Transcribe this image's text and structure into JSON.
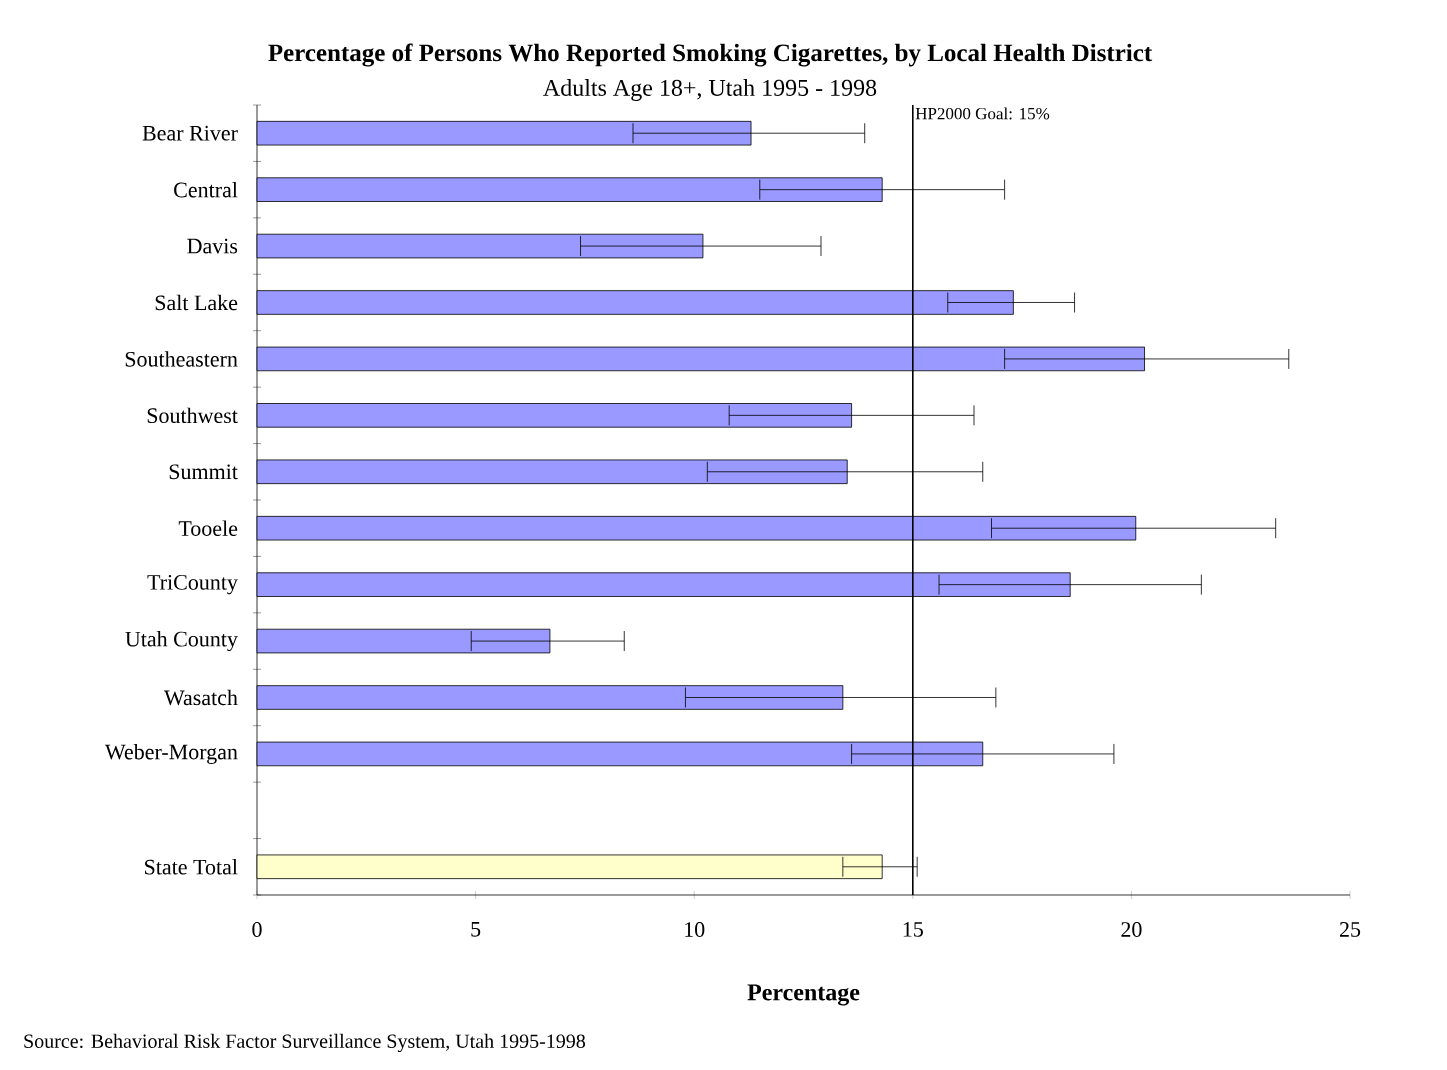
{
  "chart_data": {
    "type": "bar",
    "orientation": "horizontal",
    "title": "Percentage of Persons Who Reported Smoking Cigarettes, by Local Health District",
    "subtitle": "Adults Age 18+, Utah 1995 - 1998",
    "xlabel": "Percentage",
    "categories": [
      "Bear River",
      "Central",
      "Davis",
      "Salt Lake",
      "Southeastern",
      "Southwest",
      "Summit",
      "Tooele",
      "TriCounty",
      "Utah County",
      "Wasatch",
      "Weber-Morgan",
      null,
      "State Total"
    ],
    "values": [
      11.3,
      14.3,
      10.2,
      17.3,
      20.3,
      13.6,
      13.5,
      20.1,
      18.6,
      6.7,
      13.4,
      16.6,
      null,
      14.3
    ],
    "colors": [
      "#9999ff",
      "#9999ff",
      "#9999ff",
      "#9999ff",
      "#9999ff",
      "#9999ff",
      "#9999ff",
      "#9999ff",
      "#9999ff",
      "#9999ff",
      "#9999ff",
      "#9999ff",
      "#9999ff",
      "#ffffcc"
    ],
    "errors": [
      [
        8.6,
        13.9
      ],
      [
        11.5,
        17.1
      ],
      [
        7.4,
        12.9
      ],
      [
        15.8,
        18.7
      ],
      [
        17.1,
        23.6
      ],
      [
        10.8,
        16.4
      ],
      [
        10.3,
        16.6
      ],
      [
        16.8,
        23.3
      ],
      [
        15.6,
        21.6
      ],
      [
        4.9,
        8.4
      ],
      [
        9.8,
        16.9
      ],
      [
        13.6,
        19.6
      ],
      null,
      [
        13.4,
        15.1
      ]
    ],
    "xlim": [
      0,
      25
    ],
    "xticks": [
      0,
      5,
      10,
      15,
      20,
      25
    ],
    "ref_lines": [
      {
        "axis": "x",
        "value": 15,
        "label": "HP2000 Goal: 15%"
      }
    ],
    "annotations": [
      "Source: Behavioral Risk Factor Surveillance System, Utah 1995-1998"
    ]
  }
}
